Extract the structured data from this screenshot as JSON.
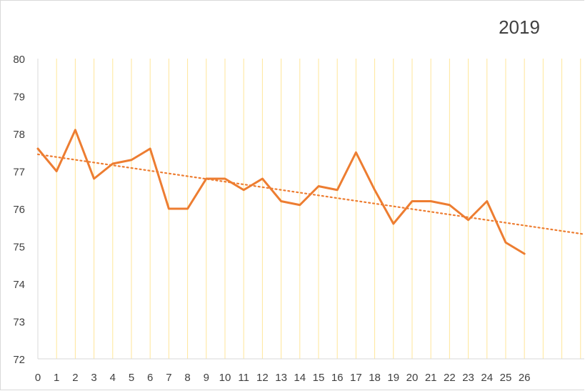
{
  "chart_data": {
    "type": "line",
    "title": "2019",
    "xlabel": "",
    "ylabel": "",
    "x_ticks": [
      "0",
      "1",
      "2",
      "3",
      "4",
      "5",
      "6",
      "7",
      "8",
      "9",
      "10",
      "11",
      "12",
      "13",
      "14",
      "15",
      "16",
      "17",
      "18",
      "19",
      "20",
      "21",
      "22",
      "23",
      "24",
      "25",
      "26"
    ],
    "x_range": [
      0,
      29.2
    ],
    "ylim": [
      72,
      80
    ],
    "y_ticks": [
      "72",
      "73",
      "74",
      "75",
      "76",
      "77",
      "78",
      "79",
      "80"
    ],
    "grid": "vertical",
    "legend": "none",
    "series": [
      {
        "values": [
          77.6,
          77.0,
          78.1,
          76.8,
          77.2,
          77.3,
          77.6,
          76.0,
          76.0,
          76.8,
          76.8,
          76.5,
          76.8,
          76.2,
          76.1,
          76.6,
          76.5,
          77.5,
          76.5,
          75.6,
          76.2,
          76.2,
          76.1,
          75.7,
          76.2,
          75.1,
          74.8
        ],
        "color": "#ED7D31",
        "style": "solid"
      }
    ],
    "trendline": {
      "type": "linear",
      "points": [
        [
          0,
          77.45
        ],
        [
          29.2,
          75.32
        ]
      ],
      "color": "#ED7D31",
      "style": "dotted"
    },
    "gridline_color": "#FFE699",
    "axis_color": "#D9D9D9",
    "text_color": "#404040"
  }
}
